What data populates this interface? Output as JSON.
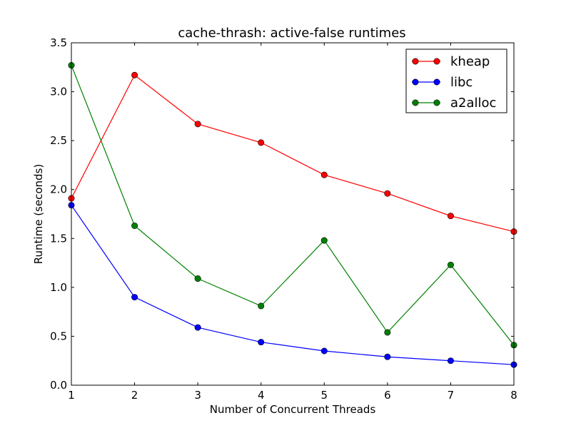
{
  "chart_data": {
    "type": "line",
    "title": "cache-thrash: active-false runtimes",
    "xlabel": "Number of Concurrent Threads",
    "ylabel": "Runtime (seconds)",
    "x": [
      1,
      2,
      3,
      4,
      5,
      6,
      7,
      8
    ],
    "xlim": [
      1,
      8
    ],
    "ylim": [
      0.0,
      3.5
    ],
    "xticks": [
      "1",
      "2",
      "3",
      "4",
      "5",
      "6",
      "7",
      "8"
    ],
    "yticks": [
      "0.0",
      "0.5",
      "1.0",
      "1.5",
      "2.0",
      "2.5",
      "3.0",
      "3.5"
    ],
    "grid": false,
    "legend_position": "top-right",
    "series": [
      {
        "name": "kheap",
        "color": "#ff0000",
        "marker": "circle",
        "values": [
          1.91,
          3.17,
          2.67,
          2.48,
          2.15,
          1.96,
          1.73,
          1.57
        ]
      },
      {
        "name": "libc",
        "color": "#0000ff",
        "marker": "circle",
        "values": [
          1.84,
          0.9,
          0.59,
          0.44,
          0.35,
          0.29,
          0.25,
          0.21
        ]
      },
      {
        "name": "a2alloc",
        "color": "#008000",
        "marker": "circle",
        "values": [
          3.27,
          1.63,
          1.09,
          0.81,
          1.48,
          0.54,
          1.23,
          0.41
        ]
      }
    ]
  }
}
